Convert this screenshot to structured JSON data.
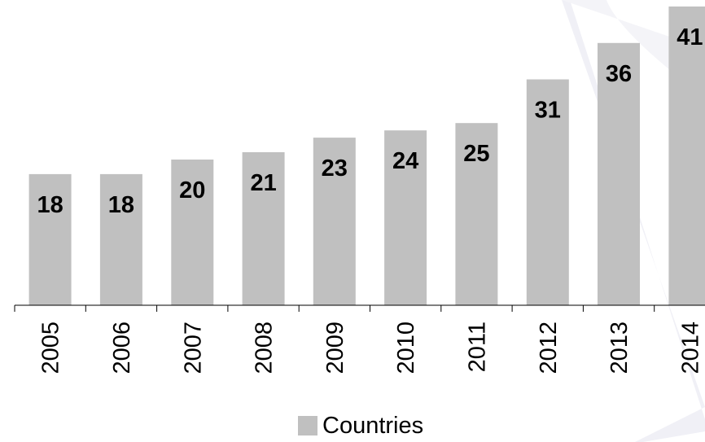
{
  "chart_data": {
    "type": "bar",
    "categories": [
      "2005",
      "2006",
      "2007",
      "2008",
      "2009",
      "2010",
      "2011",
      "2012",
      "2013",
      "2014"
    ],
    "series": [
      {
        "name": "Countries",
        "values": [
          18,
          18,
          20,
          21,
          23,
          24,
          25,
          31,
          36,
          41
        ]
      }
    ],
    "data_labels": [
      "18",
      "18",
      "20",
      "21",
      "23",
      "24",
      "25",
      "31",
      "36",
      "41"
    ],
    "title": "",
    "xlabel": "",
    "ylabel": "",
    "ylim": [
      0,
      41
    ],
    "grid": false,
    "legend_position": "bottom",
    "bar_color": "#c0c0c0",
    "background_swoosh_color": "#f0f0f6"
  },
  "legend": {
    "label": "Countries"
  }
}
